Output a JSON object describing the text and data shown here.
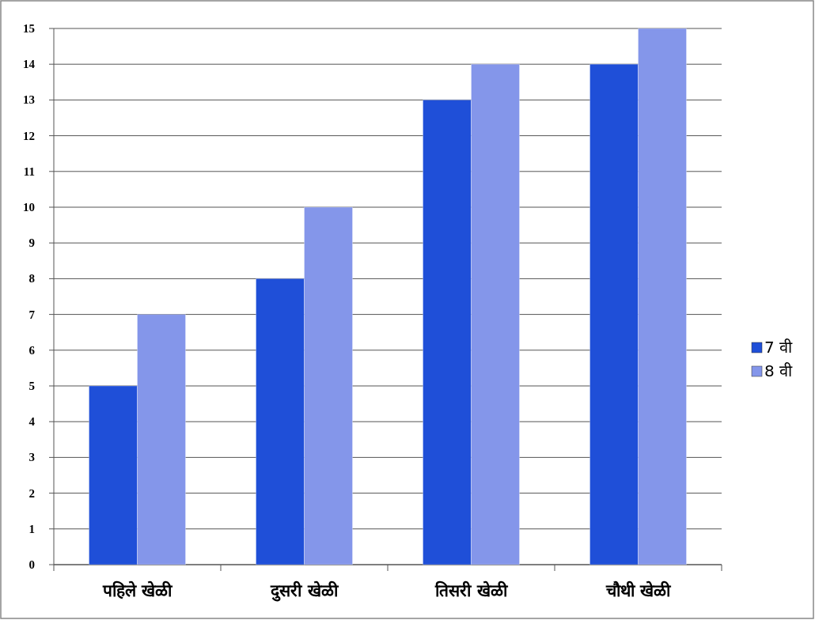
{
  "chart_data": {
    "type": "bar",
    "categories": [
      "पहिले खेळी",
      "दुसरी खेळी",
      "तिसरी खेळी",
      "चौथी खेळी"
    ],
    "series": [
      {
        "name": "7 वी",
        "color": "#1f4fd8",
        "values": [
          5,
          8,
          13,
          14
        ]
      },
      {
        "name": "8 वी",
        "color": "#8496ea",
        "values": [
          7,
          10,
          14,
          15
        ]
      }
    ],
    "ylim": [
      0,
      15
    ],
    "yticks": [
      0,
      1,
      2,
      3,
      4,
      5,
      6,
      7,
      8,
      9,
      10,
      11,
      12,
      13,
      14,
      15
    ],
    "grid": "y",
    "legend": "right"
  }
}
